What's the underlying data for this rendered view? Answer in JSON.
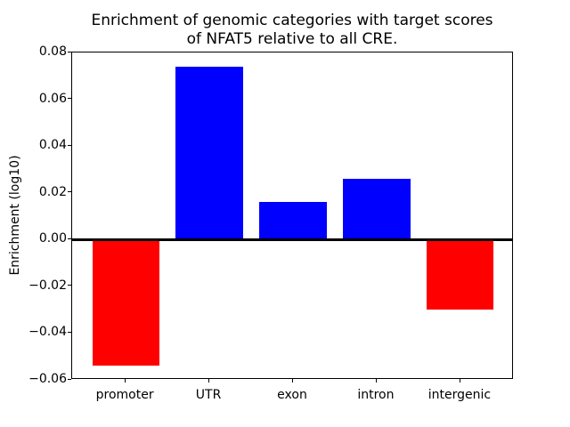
{
  "chart_data": {
    "type": "bar",
    "title": "Enrichment of genomic categories with target scores\nof NFAT5 relative to all CRE.",
    "ylabel": "Enrichment (log10)",
    "xlabel": "",
    "categories": [
      "promoter",
      "UTR",
      "exon",
      "intron",
      "intergenic"
    ],
    "values": [
      -0.054,
      0.074,
      0.016,
      0.026,
      -0.03
    ],
    "bar_colors": [
      "#ff0000",
      "#0000ff",
      "#0000ff",
      "#0000ff",
      "#ff0000"
    ],
    "positive_color": "#0000ff",
    "negative_color": "#ff0000",
    "ylim": [
      -0.06,
      0.08
    ],
    "yticks": [
      0.08,
      0.06,
      0.04,
      0.02,
      0.0,
      -0.02,
      -0.04,
      -0.06
    ],
    "ytick_labels": [
      "0.08",
      "0.06",
      "0.04",
      "0.02",
      "0.00",
      "−0.02",
      "−0.04",
      "−0.06"
    ],
    "grid": false,
    "legend": null,
    "zero_baseline": true,
    "bar_width_fraction": 0.8,
    "axis_color": "#000000",
    "background_color": "#ffffff"
  }
}
